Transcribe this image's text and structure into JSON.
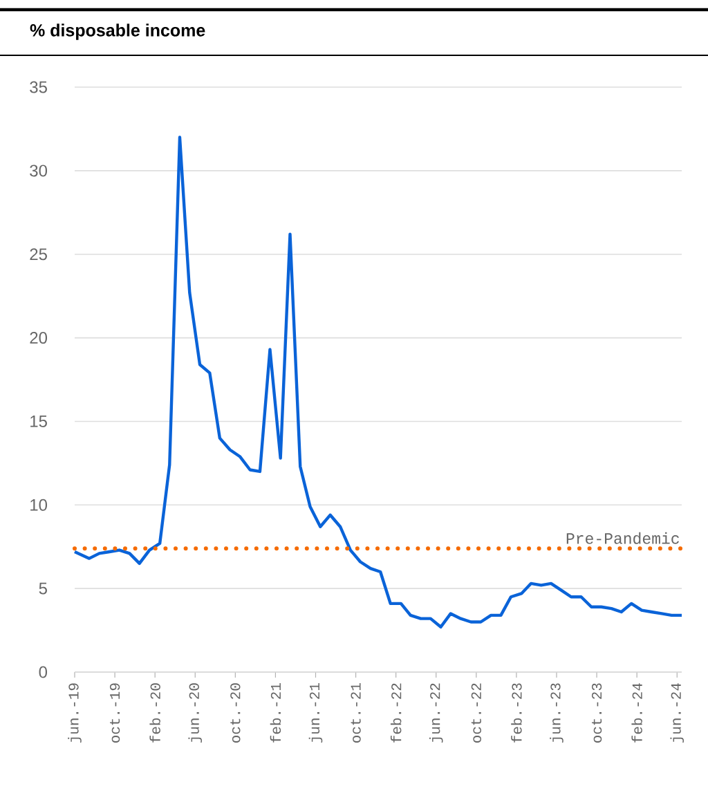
{
  "chart_data": {
    "type": "line",
    "title": "% disposable income",
    "x": [
      "2019-06-01",
      "2019-07-15",
      "2019-08-15",
      "2019-09-15",
      "2019-10-15",
      "2019-11-15",
      "2019-12-15",
      "2020-01-15",
      "2020-02-15",
      "2020-03-15",
      "2020-04-15",
      "2020-05-15",
      "2020-06-15",
      "2020-07-15",
      "2020-08-15",
      "2020-09-15",
      "2020-10-15",
      "2020-11-15",
      "2020-12-15",
      "2021-01-15",
      "2021-02-15",
      "2021-03-15",
      "2021-04-15",
      "2021-05-15",
      "2021-06-15",
      "2021-07-15",
      "2021-08-15",
      "2021-09-15",
      "2021-10-15",
      "2021-11-15",
      "2021-12-15",
      "2022-01-15",
      "2022-02-15",
      "2022-03-15",
      "2022-04-15",
      "2022-05-15",
      "2022-06-15",
      "2022-07-15",
      "2022-08-15",
      "2022-09-15",
      "2022-10-15",
      "2022-11-15",
      "2022-12-15",
      "2023-01-15",
      "2023-02-15",
      "2023-03-15",
      "2023-04-15",
      "2023-05-15",
      "2023-06-15",
      "2023-07-15",
      "2023-08-15",
      "2023-09-15",
      "2023-10-15",
      "2023-11-15",
      "2023-12-15",
      "2024-01-15",
      "2024-02-15",
      "2024-03-15",
      "2024-04-15",
      "2024-05-15",
      "2024-06-15"
    ],
    "series": [
      {
        "color": "#0a63d8",
        "values": [
          7.2,
          6.8,
          7.1,
          7.2,
          7.3,
          7.1,
          6.5,
          7.3,
          7.7,
          12.4,
          32.0,
          22.7,
          18.4,
          17.9,
          14.0,
          13.3,
          12.9,
          12.1,
          12.0,
          19.3,
          12.8,
          26.2,
          12.3,
          9.9,
          8.7,
          9.4,
          8.7,
          7.3,
          6.6,
          6.2,
          6.0,
          4.1,
          4.1,
          3.4,
          3.2,
          3.2,
          2.7,
          3.5,
          3.2,
          3.0,
          3.0,
          3.4,
          3.4,
          4.5,
          4.7,
          5.3,
          5.2,
          5.3,
          4.9,
          4.5,
          4.5,
          3.9,
          3.9,
          3.8,
          3.6,
          4.1,
          3.7,
          3.6,
          3.5,
          3.4,
          3.4
        ]
      }
    ],
    "xlim": [
      "2019-06-01",
      "2024-06-15"
    ],
    "xticks": [
      {
        "value": "2019-06-01",
        "label": "jun.-19"
      },
      {
        "value": "2019-10-01",
        "label": "oct.-19"
      },
      {
        "value": "2020-02-01",
        "label": "feb.-20"
      },
      {
        "value": "2020-06-01",
        "label": "jun.-20"
      },
      {
        "value": "2020-10-01",
        "label": "oct.-20"
      },
      {
        "value": "2021-02-01",
        "label": "feb.-21"
      },
      {
        "value": "2021-06-01",
        "label": "jun.-21"
      },
      {
        "value": "2021-10-01",
        "label": "oct.-21"
      },
      {
        "value": "2022-02-01",
        "label": "feb.-22"
      },
      {
        "value": "2022-06-01",
        "label": "jun.-22"
      },
      {
        "value": "2022-10-01",
        "label": "oct.-22"
      },
      {
        "value": "2023-02-01",
        "label": "feb.-23"
      },
      {
        "value": "2023-06-01",
        "label": "jun.-23"
      },
      {
        "value": "2023-10-01",
        "label": "oct.-23"
      },
      {
        "value": "2024-02-01",
        "label": "feb.-24"
      },
      {
        "value": "2024-06-01",
        "label": "jun.-24"
      }
    ],
    "ylim": [
      0,
      35
    ],
    "yticks": [
      0,
      5,
      10,
      15,
      20,
      25,
      30,
      35
    ],
    "grid": "y",
    "line_style": "solid",
    "ref_lines": [
      {
        "axis": "y",
        "value": 7.4,
        "label": "Pre-Pandemic",
        "color": "#f56b00",
        "line_style": "dotted"
      }
    ]
  }
}
